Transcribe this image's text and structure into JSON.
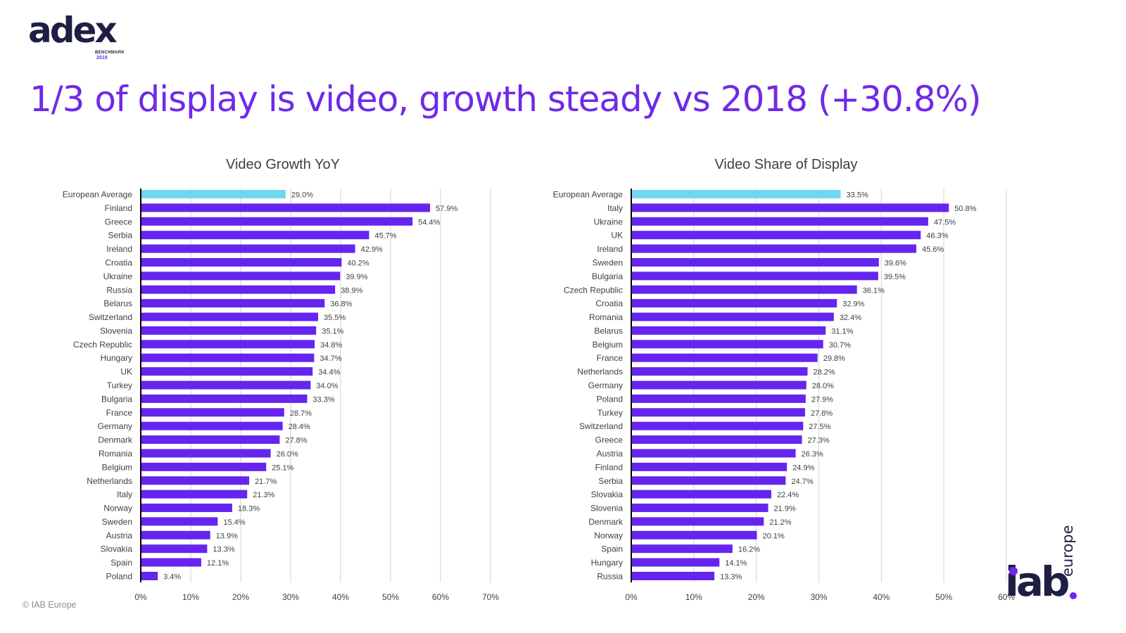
{
  "header": {
    "logo_word": "adex",
    "logo_sub": "BENCHMARK",
    "logo_year": "2019",
    "title": "1/3 of display is video, growth steady vs 2018 (+30.8%)"
  },
  "footer": {
    "copyright": "© IAB Europe",
    "iab_word": "iab",
    "iab_europe": "europe"
  },
  "colors": {
    "bar": "#6625ef",
    "highlight": "#70d7f2",
    "title": "#6f2ae8",
    "grid": "#d9d9d9",
    "axis": "#000000",
    "text": "#404040"
  },
  "chart_data": [
    {
      "type": "bar",
      "orientation": "horizontal",
      "title": "Video Growth YoY",
      "categories": [
        "European Average",
        "Finland",
        "Greece",
        "Serbia",
        "Ireland",
        "Croatia",
        "Ukraine",
        "Russia",
        "Belarus",
        "Switzerland",
        "Slovenia",
        "Czech Republic",
        "Hungary",
        "UK",
        "Turkey",
        "Bulgaria",
        "France",
        "Germany",
        "Denmark",
        "Romania",
        "Belgium",
        "Netherlands",
        "Italy",
        "Norway",
        "Sweden",
        "Austria",
        "Slovakia",
        "Spain",
        "Poland"
      ],
      "values": [
        29.0,
        57.9,
        54.4,
        45.7,
        42.9,
        40.2,
        39.9,
        38.9,
        36.8,
        35.5,
        35.1,
        34.8,
        34.7,
        34.4,
        34.0,
        33.3,
        28.7,
        28.4,
        27.8,
        26.0,
        25.1,
        21.7,
        21.3,
        18.3,
        15.4,
        13.9,
        13.3,
        12.1,
        3.4
      ],
      "value_labels": [
        "29.0%",
        "57.9%",
        "54.4%",
        "45.7%",
        "42.9%",
        "40.2%",
        "39.9%",
        "38.9%",
        "36.8%",
        "35.5%",
        "35.1%",
        "34.8%",
        "34.7%",
        "34.4%",
        "34.0%",
        "33.3%",
        "28.7%",
        "28.4%",
        "27.8%",
        "26.0%",
        "25.1%",
        "21.7%",
        "21.3%",
        "18.3%",
        "15.4%",
        "13.9%",
        "13.3%",
        "12.1%",
        "3.4%"
      ],
      "highlight_index": 0,
      "xlim": [
        0,
        70
      ],
      "ticks": [
        0,
        10,
        20,
        30,
        40,
        50,
        60,
        70
      ],
      "tick_labels": [
        "0%",
        "10%",
        "20%",
        "30%",
        "40%",
        "50%",
        "60%",
        "70%"
      ],
      "grid": true
    },
    {
      "type": "bar",
      "orientation": "horizontal",
      "title": "Video Share of Display",
      "categories": [
        "European Average",
        "Italy",
        "Ukraine",
        "UK",
        "Ireland",
        "Sweden",
        "Bulgaria",
        "Czech Republic",
        "Croatia",
        "Romania",
        "Belarus",
        "Belgium",
        "France",
        "Netherlands",
        "Germany",
        "Poland",
        "Turkey",
        "Switzerland",
        "Greece",
        "Austria",
        "Finland",
        "Serbia",
        "Slovakia",
        "Slovenia",
        "Denmark",
        "Norway",
        "Spain",
        "Hungary",
        "Russia"
      ],
      "values": [
        33.5,
        50.8,
        47.5,
        46.3,
        45.6,
        39.6,
        39.5,
        36.1,
        32.9,
        32.4,
        31.1,
        30.7,
        29.8,
        28.2,
        28.0,
        27.9,
        27.8,
        27.5,
        27.3,
        26.3,
        24.9,
        24.7,
        22.4,
        21.9,
        21.2,
        20.1,
        16.2,
        14.1,
        13.3
      ],
      "value_labels": [
        "33.5%",
        "50.8%",
        "47.5%",
        "46.3%",
        "45.6%",
        "39.6%",
        "39.5%",
        "36.1%",
        "32.9%",
        "32.4%",
        "31.1%",
        "30.7%",
        "29.8%",
        "28.2%",
        "28.0%",
        "27.9%",
        "27.8%",
        "27.5%",
        "27.3%",
        "26.3%",
        "24.9%",
        "24.7%",
        "22.4%",
        "21.9%",
        "21.2%",
        "20.1%",
        "16.2%",
        "14.1%",
        "13.3%"
      ],
      "highlight_index": 0,
      "xlim": [
        0,
        60
      ],
      "ticks": [
        0,
        10,
        20,
        30,
        40,
        50,
        60
      ],
      "tick_labels": [
        "0%",
        "10%",
        "20%",
        "30%",
        "40%",
        "50%",
        "60%"
      ],
      "grid": true
    }
  ]
}
